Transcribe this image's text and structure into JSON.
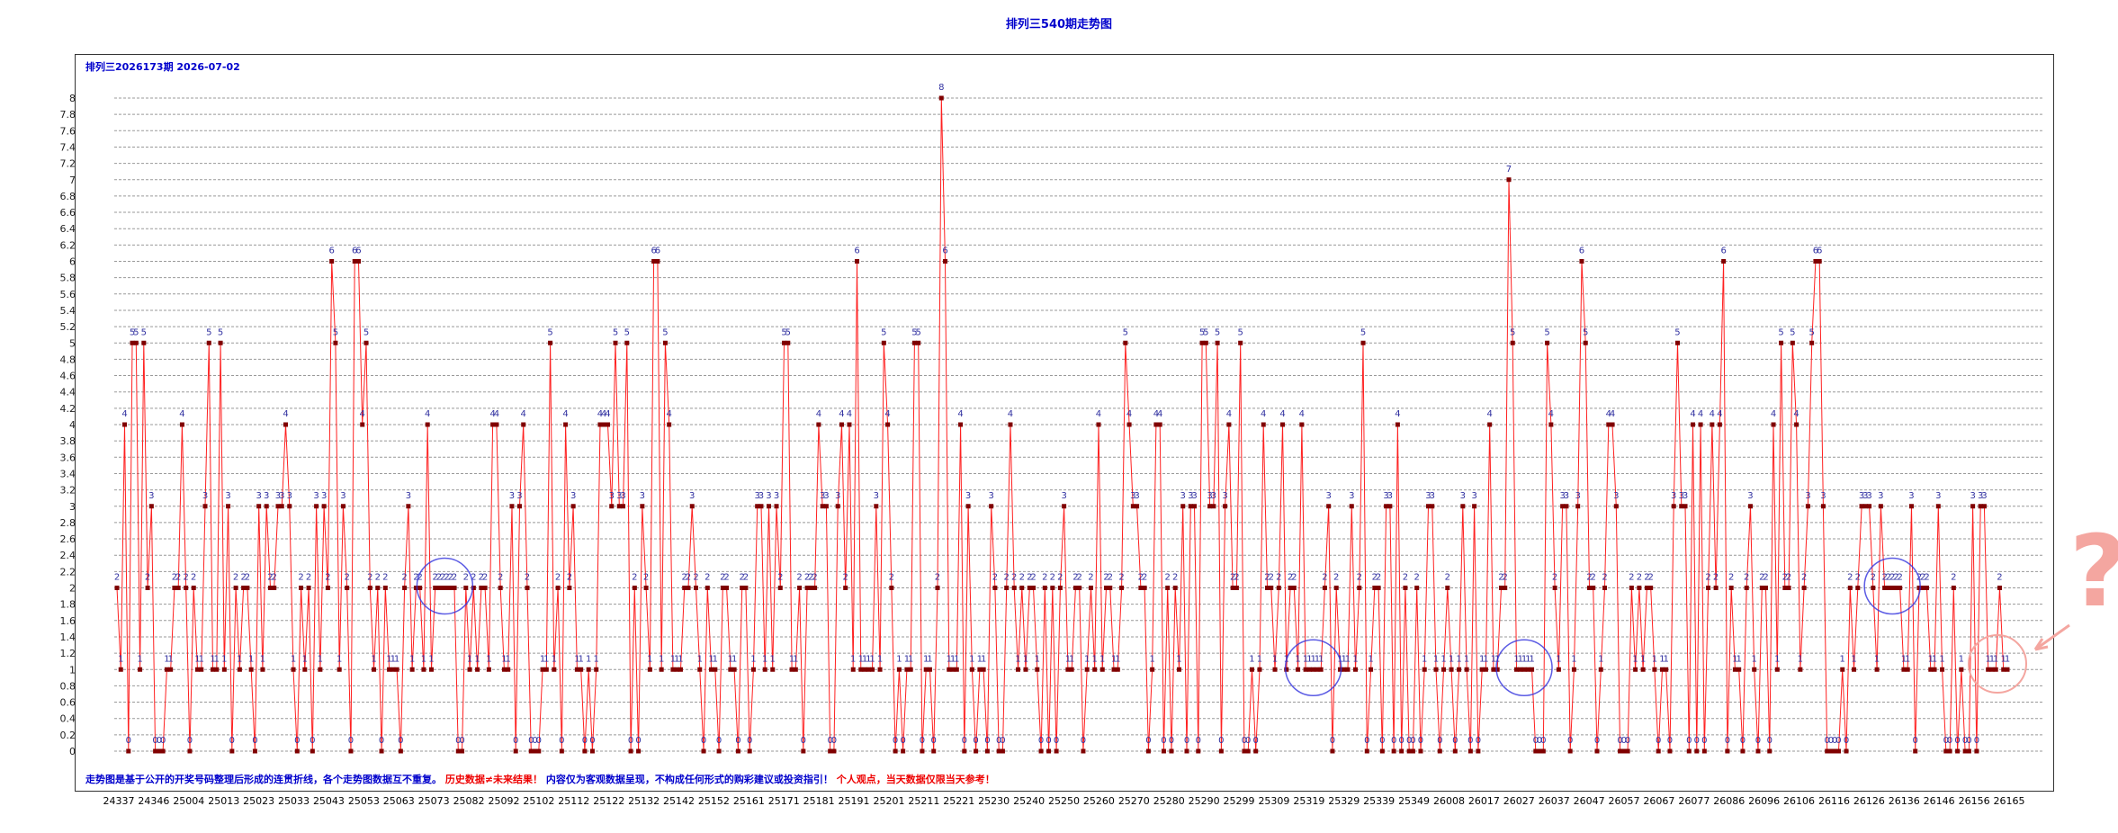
{
  "title": "排列三540期走势图",
  "period_label": "排列三2026173期  2026-07-02",
  "note": {
    "part1": "走势图是基于公开的开奖号码整理后形成的连贯折线，各个走势图数据互不重复。",
    "part2": "历史数据≠未来结果！",
    "part3": "内容仅为客观数据呈现，不构成任何形式的购彩建议或投资指引！",
    "part4": "个人观点，当天数据仅限当天参考！"
  },
  "annotation": {
    "question_mark": "?"
  },
  "colors": {
    "line": "#ff2020",
    "marker": "#800000",
    "label": "#3030a0",
    "title": "#0000cc",
    "grid": "#999999",
    "circle": "#3333dd"
  },
  "chart_data": {
    "type": "line",
    "ylim": [
      0,
      8
    ],
    "yticks": [
      "0",
      "0.2",
      "0.4",
      "0.6",
      "0.8",
      "1",
      "1.2",
      "1.4",
      "1.6",
      "1.8",
      "2",
      "2.2",
      "2.4",
      "2.6",
      "2.8",
      "3",
      "3.2",
      "3.4",
      "3.6",
      "3.8",
      "4",
      "4.2",
      "4.4",
      "4.6",
      "4.8",
      "5",
      "5.2",
      "5.4",
      "5.6",
      "5.8",
      "6",
      "6.2",
      "6.4",
      "6.6",
      "6.8",
      "7",
      "7.2",
      "7.4",
      "7.6",
      "7.8",
      "8"
    ],
    "xtick_labels": [
      "24337",
      "24346",
      "25004",
      "25013",
      "25023",
      "25033",
      "25043",
      "25053",
      "25063",
      "25073",
      "25082",
      "25092",
      "25102",
      "25112",
      "25122",
      "25132",
      "25142",
      "25152",
      "25161",
      "25171",
      "25181",
      "25191",
      "25201",
      "25211",
      "25221",
      "25230",
      "25240",
      "25250",
      "25260",
      "25270",
      "25280",
      "25290",
      "25299",
      "25309",
      "25319",
      "25329",
      "25339",
      "25349",
      "26008",
      "26017",
      "26027",
      "26037",
      "26047",
      "26057",
      "26067",
      "26077",
      "26086",
      "26096",
      "26106",
      "26116",
      "26126",
      "26136",
      "26146",
      "26156",
      "26165"
    ],
    "grid": true,
    "series": [
      {
        "values": [
          2,
          1,
          4,
          0,
          5,
          5,
          1,
          5,
          2,
          3,
          0,
          0,
          0,
          1,
          1,
          2,
          2,
          4,
          2,
          0,
          2,
          1,
          1,
          3,
          5,
          1,
          1,
          5,
          1,
          3,
          0,
          2,
          1,
          2,
          2,
          1,
          0,
          3,
          1,
          3,
          2,
          2,
          3,
          3,
          4,
          3,
          1,
          0,
          2,
          1,
          2,
          0,
          3,
          1,
          3,
          2,
          6,
          5,
          1,
          3,
          2,
          0,
          6,
          6,
          4,
          5,
          2,
          1,
          2,
          0,
          2,
          1,
          1,
          1,
          0,
          2,
          3,
          1,
          2,
          2,
          1,
          4,
          1,
          2,
          2,
          2,
          2,
          2,
          2,
          0,
          0,
          2,
          1,
          2,
          1,
          2,
          2,
          1,
          4,
          4,
          2,
          1,
          1,
          3,
          0,
          3,
          4,
          2,
          0,
          0,
          0,
          1,
          1,
          5,
          1,
          2,
          0,
          4,
          2,
          3,
          1,
          1,
          0,
          1,
          0,
          1,
          4,
          4,
          4,
          3,
          5,
          3,
          3,
          5,
          0,
          2,
          0,
          3,
          2,
          1,
          6,
          6,
          1,
          5,
          4,
          1,
          1,
          1,
          2,
          2,
          3,
          2,
          1,
          0,
          2,
          1,
          1,
          0,
          2,
          2,
          1,
          1,
          0,
          2,
          2,
          0,
          1,
          3,
          3,
          1,
          3,
          1,
          3,
          2,
          5,
          5,
          1,
          1,
          2,
          0,
          2,
          2,
          2,
          4,
          3,
          3,
          0,
          0,
          3,
          4,
          2,
          4,
          1,
          6,
          1,
          1,
          1,
          1,
          3,
          1,
          5,
          4,
          2,
          0,
          1,
          0,
          1,
          1,
          5,
          5,
          0,
          1,
          1,
          0,
          2,
          8,
          6,
          1,
          1,
          1,
          4,
          0,
          3,
          1,
          0,
          1,
          1,
          0,
          3,
          2,
          0,
          0,
          2,
          4,
          2,
          1,
          2,
          1,
          2,
          2,
          1,
          0,
          2,
          0,
          2,
          0,
          2,
          3,
          1,
          1,
          2,
          2,
          0,
          1,
          2,
          1,
          4,
          1,
          2,
          2,
          1,
          1,
          2,
          5,
          4,
          3,
          3,
          2,
          2,
          0,
          1,
          4,
          4,
          0,
          2,
          0,
          2,
          1,
          3,
          0,
          3,
          3,
          0,
          5,
          5,
          3,
          3,
          5,
          0,
          3,
          4,
          2,
          2,
          5,
          0,
          0,
          1,
          0,
          1,
          4,
          2,
          2,
          1,
          2,
          4,
          1,
          2,
          2,
          1,
          4,
          1,
          1,
          1,
          1,
          1,
          2,
          3,
          0,
          2,
          1,
          1,
          1,
          3,
          1,
          2,
          5,
          0,
          1,
          2,
          2,
          0,
          3,
          3,
          0,
          4,
          0,
          2,
          0,
          0,
          2,
          0,
          1,
          3,
          3,
          1,
          0,
          1,
          2,
          1,
          0,
          1,
          3,
          1,
          0,
          3,
          0,
          1,
          1,
          4,
          1,
          1,
          2,
          2,
          7,
          5,
          1,
          1,
          1,
          1,
          1,
          0,
          0,
          0,
          5,
          4,
          2,
          1,
          3,
          3,
          0,
          1,
          3,
          6,
          5,
          2,
          2,
          0,
          1,
          2,
          4,
          4,
          3,
          0,
          0,
          0,
          2,
          1,
          2,
          1,
          2,
          2,
          1,
          0,
          1,
          1,
          0,
          3,
          5,
          3,
          3,
          0,
          4,
          0,
          4,
          0,
          2,
          4,
          2,
          4,
          6,
          0,
          2,
          1,
          1,
          0,
          2,
          3,
          1,
          0,
          2,
          2,
          0,
          4,
          1,
          5,
          2,
          2,
          5,
          4,
          1,
          2,
          3,
          5,
          6,
          6,
          3,
          0,
          0,
          0,
          0,
          1,
          0,
          2,
          1,
          2,
          3,
          3,
          3,
          2,
          1,
          3,
          2,
          2,
          2,
          2,
          2,
          1,
          1,
          3,
          0,
          2,
          2,
          2,
          1,
          1,
          3,
          1,
          0,
          0,
          2,
          0,
          1,
          0,
          0,
          3,
          0,
          3,
          3,
          1,
          1,
          1,
          2,
          1,
          1
        ]
      }
    ]
  }
}
